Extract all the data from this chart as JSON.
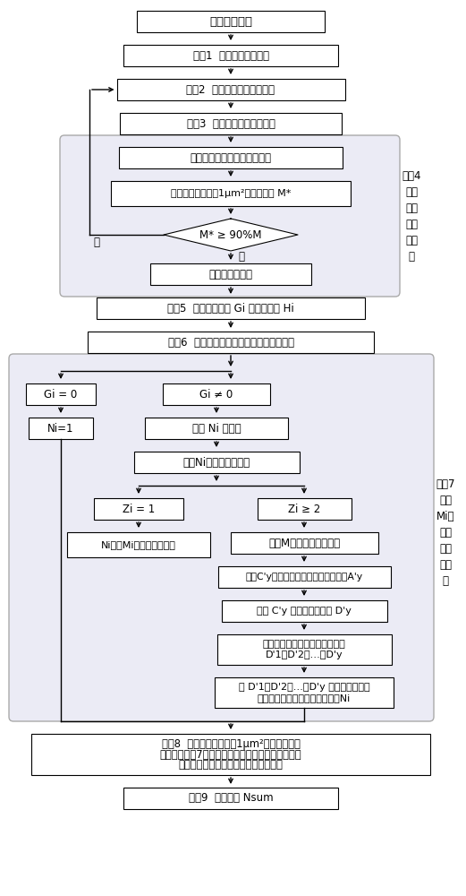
{
  "title": "颗粒数的测量",
  "step1": "步骤1  采集待测颗粒样品",
  "step2": "步骤2  测颗粒样品的分散处理",
  "step3": "步骤3  得分散颗粒的电镜图像",
  "box_measure": "测量各个团聚颗粒的投影面积",
  "box_count": "统计投影面积小于1μm²的颗粒个数 M*",
  "diamond_text": "M* ≥ 90%M",
  "label_no": "否",
  "label_yes": "是",
  "box_dispersed": "颗粒已初步分散",
  "step4_label_lines": [
    "步骤4",
    "判断",
    "颗粒",
    "的分",
    "散程",
    "度"
  ],
  "step5": "步骤5  确定拗点个数 Gi 和弧长个数 Hi",
  "step6": "步骤6  排除拗点个数和弧长个数过多的颗粒",
  "box_g0": "Gi = 0",
  "box_ni1": "Ni=1",
  "box_gne0": "Gi ≠ 0",
  "box_ni_range": "确定 Ni 的范围",
  "box_ni_exclude": "排除Ni取值不合理情况",
  "box_z1": "Zi = 1",
  "box_z2": "Zi ≥ 2",
  "box_ni_is_line1": "Ni即为Mi中单个颗粒个数",
  "box_solve": "求解M中单个颗粒的直径",
  "box_calc_a": "计算C'y对应的相邻两拗点间直线距离A'y",
  "box_calc_d": "计算 C'y 对应的颗粒直径 D'y",
  "box_get_set_l1": "得到弧长对应的颗粒直径的集合",
  "box_get_set_l2": "D'1、D'2、…、D'y",
  "box_get_ni_l1": "将 D'1、D'2、…、D'y 中每个不同数值",
  "box_get_ni_l2": "仅提取一个，得到单个颗粒个数Ni",
  "step7_label_lines": [
    "步骤7",
    "判断",
    "Mi中",
    "单个",
    "颗粒",
    "的个",
    "数"
  ],
  "step8_l1": "步骤8  筛选投影面积小于1μm²的团聚颗粒，",
  "step8_l2": "逐一采用步骤7的方法判断团聚颗粒中单个颗粒的个",
  "step8_l3": "数，得到颗粒样品中单个颗粒数的集合",
  "step9": "步骤9  计算得到 Nsum",
  "bg": "#ffffff",
  "section_bg": "#ebebf5",
  "section_edge": "#aaaaaa"
}
